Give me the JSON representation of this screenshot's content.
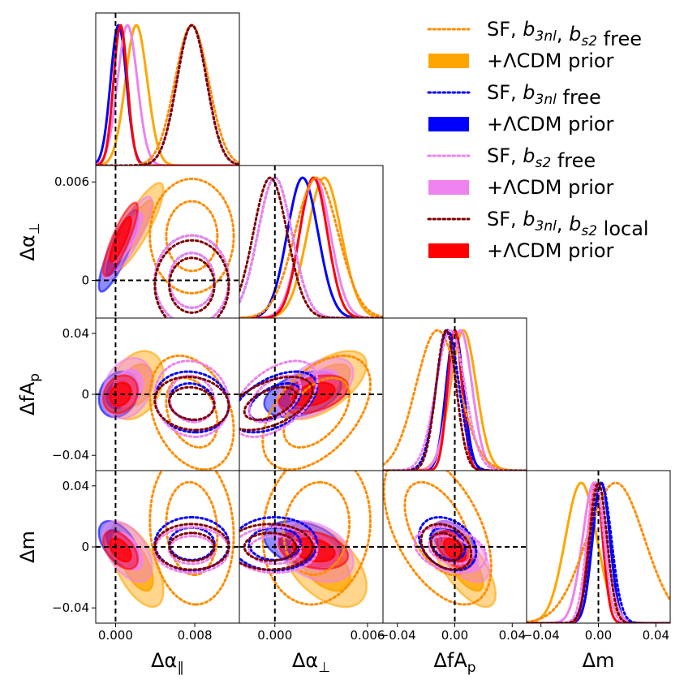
{
  "chart_data": {
    "type": "corner",
    "parameters": [
      {
        "key": "apar",
        "label": "Δα",
        "sub": "∥",
        "range": [
          -0.002,
          0.0125
        ],
        "ticks": [
          0.0,
          0.008
        ],
        "tick_labels": [
          "0.000",
          "0.008"
        ]
      },
      {
        "key": "aperp",
        "label": "Δα",
        "sub": "⊥",
        "range": [
          -0.0023,
          0.007
        ],
        "ticks": [
          0.0,
          0.006
        ],
        "tick_labels": [
          "0.000",
          "0.006"
        ],
        "y_tick_labels": [
          "0",
          "0.006"
        ]
      },
      {
        "key": "fAp",
        "label": "ΔfA",
        "sub": "p",
        "range": [
          -0.05,
          0.05
        ],
        "ticks": [
          -0.04,
          0.0,
          0.04
        ],
        "tick_labels": [
          "−0.04",
          "0.00",
          "0.04"
        ],
        "y_tick_labels": [
          "−0.04",
          "0",
          "0.04"
        ]
      },
      {
        "key": "m",
        "label": "Δm",
        "sub": "",
        "range": [
          -0.05,
          0.05
        ],
        "ticks": [
          -0.04,
          0.0,
          0.04
        ],
        "tick_labels": [
          "−0.04",
          "0.00",
          "0.04"
        ],
        "y_tick_labels": [
          "−0.04",
          "0",
          "0.04"
        ]
      }
    ],
    "truth": [
      0,
      0,
      0,
      0
    ],
    "legend_position": "top-right",
    "series": [
      {
        "name": "SF, b3nl, bs2 free",
        "label_parts": [
          [
            "SF, ",
            ""
          ],
          [
            "b",
            "3nl"
          ],
          [
            ", ",
            ""
          ],
          [
            "b",
            "s2"
          ],
          [
            " free",
            ""
          ]
        ],
        "color": "#ff8c00",
        "style": "dotted",
        "mean": [
          0.0077,
          0.0027,
          -0.012,
          0.012
        ],
        "sigma": [
          0.0017,
          0.0014,
          0.015,
          0.02
        ],
        "corr": [
          [
            1,
            0,
            -0.3,
            -0.1
          ],
          [
            0,
            1,
            0.5,
            0.1
          ],
          [
            -0.3,
            0.5,
            1,
            -0.5
          ],
          [
            -0.1,
            0.1,
            -0.5,
            1
          ]
        ]
      },
      {
        "name": "+ΛCDM prior",
        "label_parts": [
          [
            "+ΛCDM prior",
            ""
          ]
        ],
        "color": "#ffa500",
        "style": "filled",
        "mean": [
          0.0021,
          0.0032,
          0.006,
          -0.012
        ],
        "sigma": [
          0.0011,
          0.0011,
          0.009,
          0.011
        ],
        "corr": [
          [
            1,
            0.85,
            0.3,
            -0.6
          ],
          [
            0.85,
            1,
            0.6,
            -0.5
          ],
          [
            0.3,
            0.6,
            1,
            -0.7
          ],
          [
            -0.6,
            -0.5,
            -0.7,
            1
          ]
        ]
      },
      {
        "name": "SF, b3nl free",
        "label_parts": [
          [
            "SF, ",
            ""
          ],
          [
            "b",
            "3nl"
          ],
          [
            " free",
            ""
          ]
        ],
        "color": "#0000ff",
        "style": "dotted",
        "mean": [
          0.0077,
          0.0,
          -0.005,
          0.002
        ],
        "sigma": [
          0.0015,
          0.0011,
          0.008,
          0.007
        ],
        "corr": [
          [
            1,
            0,
            -0.1,
            0
          ],
          [
            0,
            1,
            0.5,
            0
          ],
          [
            -0.1,
            0.5,
            1,
            -0.3
          ],
          [
            0,
            0,
            -0.3,
            1
          ]
        ]
      },
      {
        "name": "+ΛCDM prior",
        "label_parts": [
          [
            "+ΛCDM prior",
            ""
          ]
        ],
        "color": "#0000ff",
        "style": "filled",
        "mean": [
          0.0003,
          0.0018,
          0.0,
          0.002
        ],
        "sigma": [
          0.0008,
          0.001,
          0.006,
          0.006
        ],
        "corr": [
          [
            1,
            0.85,
            0.2,
            -0.5
          ],
          [
            0.85,
            1,
            0.4,
            -0.3
          ],
          [
            0.2,
            0.4,
            1,
            -0.5
          ],
          [
            -0.5,
            -0.3,
            -0.5,
            1
          ]
        ]
      },
      {
        "name": "SF, bs2 free",
        "label_parts": [
          [
            "SF, ",
            ""
          ],
          [
            "b",
            "s2"
          ],
          [
            " free",
            ""
          ]
        ],
        "color": "#ee82ee",
        "style": "dotted",
        "mean": [
          0.0077,
          0.0,
          -0.003,
          -0.002
        ],
        "sigma": [
          0.0015,
          0.0011,
          0.01,
          0.006
        ],
        "corr": [
          [
            1,
            0,
            -0.1,
            0
          ],
          [
            0,
            1,
            0.5,
            0
          ],
          [
            -0.1,
            0.5,
            1,
            -0.3
          ],
          [
            0,
            0,
            -0.3,
            1
          ]
        ]
      },
      {
        "name": "+ΛCDM prior",
        "label_parts": [
          [
            "+ΛCDM prior",
            ""
          ]
        ],
        "color": "#ee82ee",
        "style": "filled",
        "mean": [
          0.0012,
          0.0026,
          0.004,
          -0.003
        ],
        "sigma": [
          0.001,
          0.001,
          0.008,
          0.008
        ],
        "corr": [
          [
            1,
            0.85,
            0.25,
            -0.5
          ],
          [
            0.85,
            1,
            0.5,
            -0.35
          ],
          [
            0.25,
            0.5,
            1,
            -0.6
          ],
          [
            -0.5,
            -0.35,
            -0.6,
            1
          ]
        ]
      },
      {
        "name": "SF, b3nl, bs2 local",
        "label_parts": [
          [
            "SF, ",
            ""
          ],
          [
            "b",
            "3nl"
          ],
          [
            ", ",
            ""
          ],
          [
            "b",
            "s2"
          ],
          [
            " local",
            ""
          ]
        ],
        "color": "#800000",
        "style": "dotted",
        "mean": [
          0.0077,
          -0.0003,
          -0.006,
          0.0
        ],
        "sigma": [
          0.0015,
          0.0011,
          0.007,
          0.006
        ],
        "corr": [
          [
            1,
            0,
            -0.1,
            0
          ],
          [
            0,
            1,
            0.5,
            0
          ],
          [
            -0.1,
            0.5,
            1,
            -0.3
          ],
          [
            0,
            0,
            -0.3,
            1
          ]
        ]
      },
      {
        "name": "+ΛCDM prior",
        "label_parts": [
          [
            "+ΛCDM prior",
            ""
          ]
        ],
        "color": "#ff0000",
        "style": "filled",
        "mean": [
          0.0005,
          0.0025,
          0.0,
          -0.002
        ],
        "sigma": [
          0.0007,
          0.0009,
          0.005,
          0.005
        ],
        "corr": [
          [
            1,
            0.85,
            0.2,
            -0.5
          ],
          [
            0.85,
            1,
            0.4,
            -0.3
          ],
          [
            0.2,
            0.4,
            1,
            -0.5
          ],
          [
            -0.5,
            -0.3,
            -0.5,
            1
          ]
        ]
      }
    ]
  }
}
